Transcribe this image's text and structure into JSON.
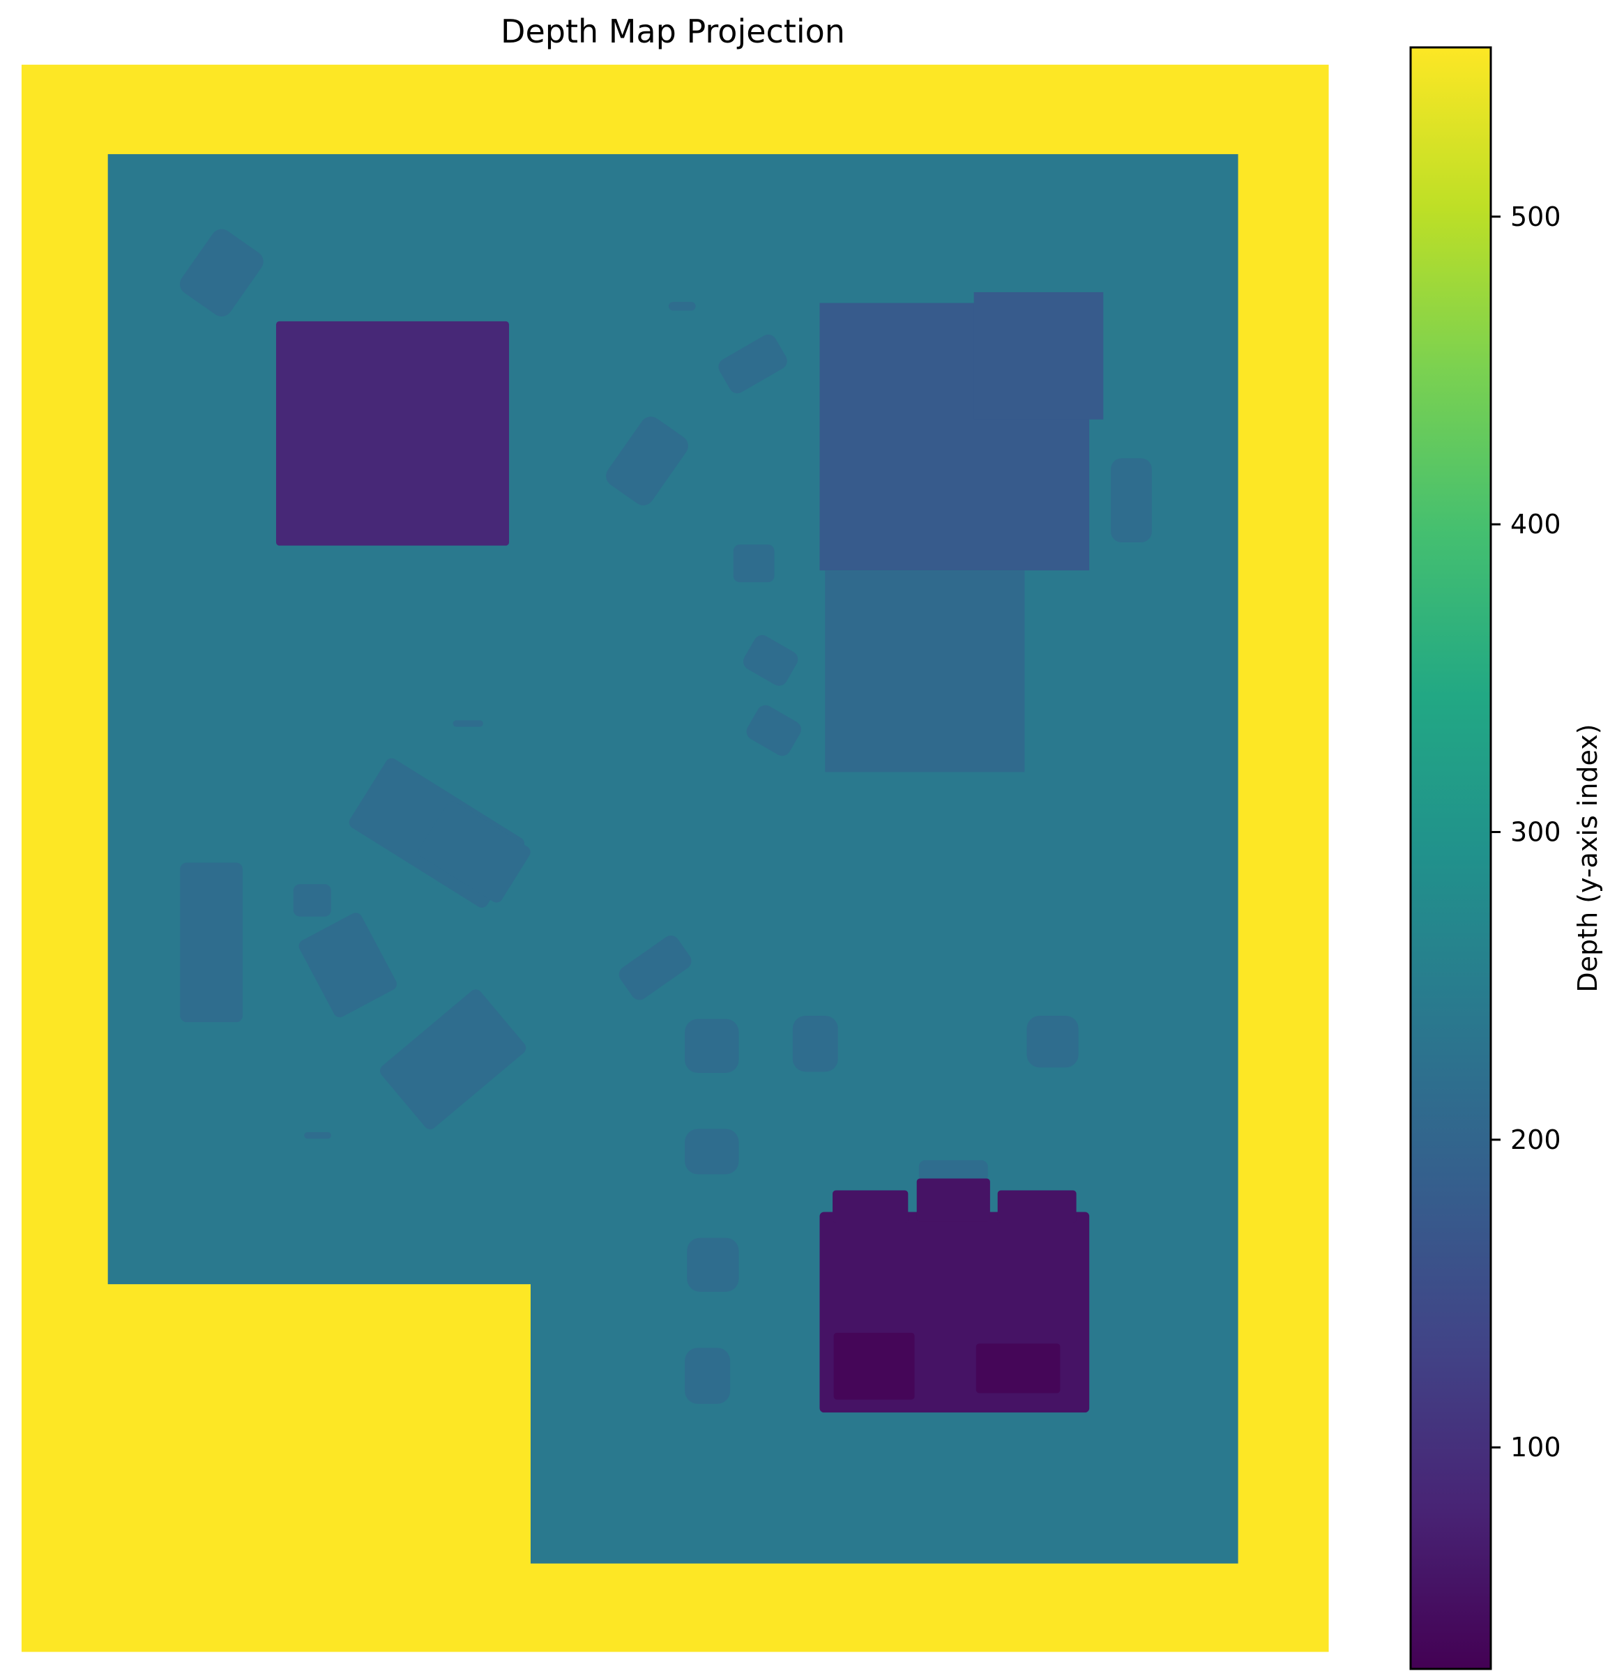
{
  "chart_data": {
    "type": "heatmap",
    "title": "Depth Map Projection",
    "colormap": "viridis",
    "colorbar": {
      "label": "Depth (y-axis index)",
      "range": [
        28,
        555
      ],
      "ticks": [
        100,
        200,
        300,
        400,
        500
      ],
      "tick_labels": [
        "100",
        "200",
        "300",
        "400",
        "500"
      ]
    },
    "regions": [
      {
        "name": "background",
        "depth": 555
      },
      {
        "name": "floor",
        "depth": 240
      },
      {
        "name": "object-top-left-square",
        "depth": 88
      },
      {
        "name": "object-top-right-block",
        "depth": 178
      },
      {
        "name": "object-right-middle-block",
        "depth": 210
      },
      {
        "name": "object-bottom-right-cluster",
        "depth": 55
      },
      {
        "name": "object-bottom-right-cluster-dark",
        "depth": 35
      },
      {
        "name": "object-small-items",
        "depth": 215
      }
    ],
    "axes": {
      "x_visible": false,
      "y_visible": false
    }
  }
}
